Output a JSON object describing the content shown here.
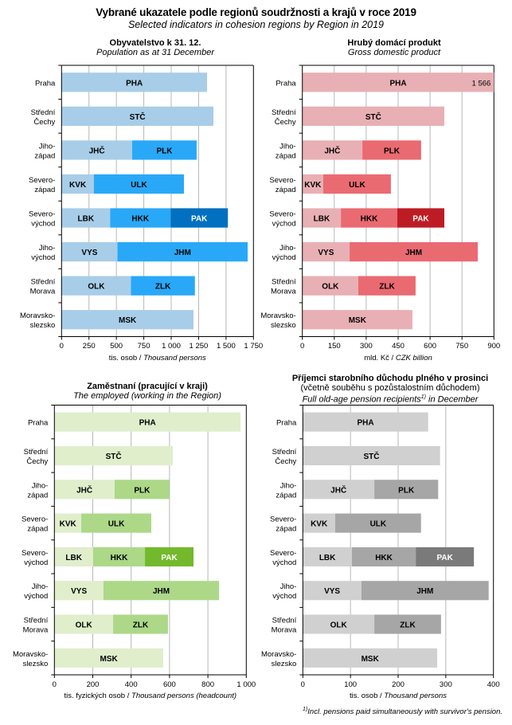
{
  "header": {
    "title": "Vybrané ukazatele podle regionů soudržnosti  a krajů v roce 2019",
    "subtitle": "Selected indicators in cohesion regions  by Region  in 2019"
  },
  "footnote": {
    "marker": "1)",
    "text": "Incl. pensions paid simultaneously with survivor's pension."
  },
  "chart_data": [
    {
      "id": "population",
      "type": "bar",
      "orientation": "horizontal-stacked",
      "title": "Obyvatelstvo k 31. 12.",
      "subtitle": "Population as at 31 December",
      "xlabel_cz": "tis. osob / ",
      "xlabel_en": "Thousand persons",
      "xlim": [
        0,
        1750
      ],
      "xticks": [
        0,
        250,
        500,
        750,
        1000,
        1250,
        1500,
        1750
      ],
      "xtick_labels": [
        "0",
        "250",
        "500",
        "750",
        "1 000",
        "1 250",
        "1 500",
        "1 750"
      ],
      "grid": true,
      "colors": [
        "#a8cde8",
        "#29a8f8",
        "#0270c0"
      ],
      "label_colors": [
        "#000000",
        "#000000",
        "#ffffff"
      ],
      "categories": [
        {
          "label": [
            "Praha"
          ],
          "segments": [
            {
              "name": "PHA",
              "value": 1327
            }
          ]
        },
        {
          "label": [
            "Střední",
            "Čechy"
          ],
          "segments": [
            {
              "name": "STČ",
              "value": 1385
            }
          ]
        },
        {
          "label": [
            "Jiho-",
            "západ"
          ],
          "segments": [
            {
              "name": "JHČ",
              "value": 644
            },
            {
              "name": "PLK",
              "value": 588
            }
          ]
        },
        {
          "label": [
            "Severo-",
            "západ"
          ],
          "segments": [
            {
              "name": "KVK",
              "value": 295
            },
            {
              "name": "ULK",
              "value": 821
            }
          ]
        },
        {
          "label": [
            "Severo-",
            "východ"
          ],
          "segments": [
            {
              "name": "LBK",
              "value": 443
            },
            {
              "name": "HKK",
              "value": 551
            },
            {
              "name": "PAK",
              "value": 523
            }
          ]
        },
        {
          "label": [
            "Jiho-",
            "východ"
          ],
          "segments": [
            {
              "name": "VYS",
              "value": 510
            },
            {
              "name": "JHM",
              "value": 1187
            }
          ]
        },
        {
          "label": [
            "Střední",
            "Morava"
          ],
          "segments": [
            {
              "name": "OLK",
              "value": 633
            },
            {
              "name": "ZLK",
              "value": 583
            }
          ]
        },
        {
          "label": [
            "Moravsko-",
            "slezsko"
          ],
          "segments": [
            {
              "name": "MSK",
              "value": 1203
            }
          ]
        }
      ],
      "value_labels": []
    },
    {
      "id": "gdp",
      "type": "bar",
      "orientation": "horizontal-stacked",
      "title": "Hrubý domácí produkt",
      "subtitle": "Gross domestic product",
      "xlabel_cz": "mld. Kč / ",
      "xlabel_en": "CZK billion",
      "xlim": [
        0,
        900
      ],
      "xticks": [
        0,
        150,
        300,
        450,
        600,
        750,
        900
      ],
      "xtick_labels": [
        "0",
        "150",
        "300",
        "450",
        "600",
        "750",
        "900"
      ],
      "grid": true,
      "colors": [
        "#e8b0b4",
        "#ea6a72",
        "#be1c24"
      ],
      "label_colors": [
        "#000000",
        "#000000",
        "#ffffff"
      ],
      "categories": [
        {
          "label": [
            "Praha"
          ],
          "segments": [
            {
              "name": "PHA",
              "value": 1566
            }
          ]
        },
        {
          "label": [
            "Střední",
            "Čechy"
          ],
          "segments": [
            {
              "name": "STČ",
              "value": 667
            }
          ]
        },
        {
          "label": [
            "Jiho-",
            "západ"
          ],
          "segments": [
            {
              "name": "JHČ",
              "value": 282
            },
            {
              "name": "PLK",
              "value": 276
            }
          ]
        },
        {
          "label": [
            "Severo-",
            "západ"
          ],
          "segments": [
            {
              "name": "KVK",
              "value": 98
            },
            {
              "name": "ULK",
              "value": 318
            }
          ]
        },
        {
          "label": [
            "Severo-",
            "východ"
          ],
          "segments": [
            {
              "name": "LBK",
              "value": 181
            },
            {
              "name": "HKK",
              "value": 265
            },
            {
              "name": "PAK",
              "value": 221
            }
          ]
        },
        {
          "label": [
            "Jiho-",
            "východ"
          ],
          "segments": [
            {
              "name": "VYS",
              "value": 222
            },
            {
              "name": "JHM",
              "value": 602
            }
          ]
        },
        {
          "label": [
            "Střední",
            "Morava"
          ],
          "segments": [
            {
              "name": "OLK",
              "value": 263
            },
            {
              "name": "ZLK",
              "value": 269
            }
          ]
        },
        {
          "label": [
            "Moravsko-",
            "slezsko"
          ],
          "segments": [
            {
              "name": "MSK",
              "value": 517
            }
          ]
        }
      ],
      "value_labels": [
        {
          "category": 0,
          "text": "1 566"
        }
      ]
    },
    {
      "id": "employed",
      "type": "bar",
      "orientation": "horizontal-stacked",
      "title": "Zaměstnaní (pracující v kraji)",
      "subtitle": "The employed (working in the Region)",
      "xlabel_cz": "tis. fyzických osob / ",
      "xlabel_en": "Thousand persons (headcount)",
      "xlim": [
        0,
        1000
      ],
      "xticks": [
        0,
        200,
        400,
        600,
        800,
        1000
      ],
      "xtick_labels": [
        "0",
        "200",
        "400",
        "600",
        "800",
        "1 000"
      ],
      "grid": true,
      "colors": [
        "#e0eecc",
        "#acd888",
        "#74b82c"
      ],
      "label_colors": [
        "#000000",
        "#000000",
        "#ffffff"
      ],
      "categories": [
        {
          "label": [
            "Praha"
          ],
          "segments": [
            {
              "name": "PHA",
              "value": 970
            }
          ]
        },
        {
          "label": [
            "Střední",
            "Čechy"
          ],
          "segments": [
            {
              "name": "STČ",
              "value": 617
            }
          ]
        },
        {
          "label": [
            "Jiho-",
            "západ"
          ],
          "segments": [
            {
              "name": "JHČ",
              "value": 314
            },
            {
              "name": "PLK",
              "value": 285
            }
          ]
        },
        {
          "label": [
            "Severo-",
            "západ"
          ],
          "segments": [
            {
              "name": "KVK",
              "value": 140
            },
            {
              "name": "ULK",
              "value": 365
            }
          ]
        },
        {
          "label": [
            "Severo-",
            "východ"
          ],
          "segments": [
            {
              "name": "LBK",
              "value": 202
            },
            {
              "name": "HKK",
              "value": 270
            },
            {
              "name": "PAK",
              "value": 253
            }
          ]
        },
        {
          "label": [
            "Jiho-",
            "východ"
          ],
          "segments": [
            {
              "name": "VYS",
              "value": 256
            },
            {
              "name": "JHM",
              "value": 602
            }
          ]
        },
        {
          "label": [
            "Střední",
            "Morava"
          ],
          "segments": [
            {
              "name": "OLK",
              "value": 306
            },
            {
              "name": "ZLK",
              "value": 286
            }
          ]
        },
        {
          "label": [
            "Moravsko-",
            "slezsko"
          ],
          "segments": [
            {
              "name": "MSK",
              "value": 567
            }
          ]
        }
      ],
      "value_labels": []
    },
    {
      "id": "pension",
      "type": "bar",
      "orientation": "horizontal-stacked",
      "title": "Příjemci starobního důchodu plného v prosinci",
      "title_line2": "(včetně souběhu s pozůstalostním důchodem)",
      "subtitle": "Full old-age pension recipients",
      "subtitle_marker": "1)",
      "subtitle_tail": " in December",
      "xlabel_cz": "tis. osob / ",
      "xlabel_en": "Thousand persons",
      "xlim": [
        0,
        400
      ],
      "xticks": [
        0,
        100,
        200,
        300,
        400
      ],
      "xtick_labels": [
        "0",
        "100",
        "200",
        "300",
        "400"
      ],
      "grid": true,
      "colors": [
        "#d0d0d0",
        "#a6a6a6",
        "#7a7a7a"
      ],
      "label_colors": [
        "#000000",
        "#000000",
        "#ffffff"
      ],
      "categories": [
        {
          "label": [
            "Praha"
          ],
          "segments": [
            {
              "name": "PHA",
              "value": 263
            }
          ]
        },
        {
          "label": [
            "Střední",
            "Čechy"
          ],
          "segments": [
            {
              "name": "STČ",
              "value": 288
            }
          ]
        },
        {
          "label": [
            "Jiho-",
            "západ"
          ],
          "segments": [
            {
              "name": "JHČ",
              "value": 150
            },
            {
              "name": "PLK",
              "value": 134
            }
          ]
        },
        {
          "label": [
            "Severo-",
            "západ"
          ],
          "segments": [
            {
              "name": "KVK",
              "value": 68
            },
            {
              "name": "ULK",
              "value": 180
            }
          ]
        },
        {
          "label": [
            "Severo-",
            "východ"
          ],
          "segments": [
            {
              "name": "LBK",
              "value": 103
            },
            {
              "name": "HKK",
              "value": 134
            },
            {
              "name": "PAK",
              "value": 122
            }
          ]
        },
        {
          "label": [
            "Jiho-",
            "východ"
          ],
          "segments": [
            {
              "name": "VYS",
              "value": 123
            },
            {
              "name": "JHM",
              "value": 267
            }
          ]
        },
        {
          "label": [
            "Střední",
            "Morava"
          ],
          "segments": [
            {
              "name": "OLK",
              "value": 150
            },
            {
              "name": "ZLK",
              "value": 140
            }
          ]
        },
        {
          "label": [
            "Moravsko-",
            "slezsko"
          ],
          "segments": [
            {
              "name": "MSK",
              "value": 282
            }
          ]
        }
      ],
      "value_labels": []
    }
  ]
}
